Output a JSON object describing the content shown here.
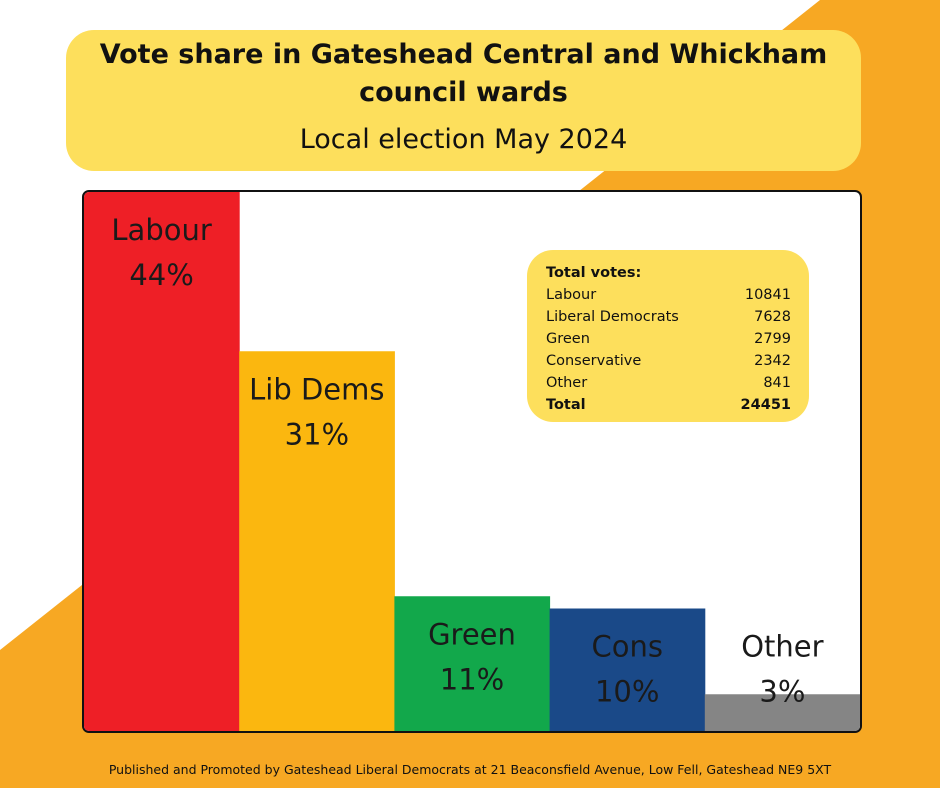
{
  "header": {
    "title": "Vote share in Gateshead Central and Whickham council wards",
    "subtitle": "Local election May 2024"
  },
  "chart_data": {
    "type": "bar",
    "categories": [
      "Labour",
      "Lib Dems",
      "Green",
      "Cons",
      "Other"
    ],
    "values": [
      44,
      31,
      11,
      10,
      3
    ],
    "value_labels": [
      "44%",
      "31%",
      "11%",
      "10%",
      "3%"
    ],
    "colors": [
      "#ee1f26",
      "#fbb70f",
      "#12a84b",
      "#1a4988",
      "#858585"
    ],
    "label_colors": [
      "#1a1a1a",
      "#1a1a1a",
      "#1a1a1a",
      "#1a1a1a",
      "#1a1a1a"
    ],
    "ylim": [
      0,
      44
    ],
    "grid": false
  },
  "totals": {
    "title": "Total votes:",
    "rows": [
      {
        "label": "Labour",
        "value": "10841"
      },
      {
        "label": "Liberal Democrats",
        "value": "7628"
      },
      {
        "label": "Green",
        "value": "2799"
      },
      {
        "label": "Conservative",
        "value": "2342"
      },
      {
        "label": "Other",
        "value": "841"
      },
      {
        "label": "Total",
        "value": "24451"
      }
    ]
  },
  "footer": {
    "text": "Published and Promoted by Gateshead Liberal Democrats at 21 Beaconsfield Avenue, Low Fell, Gateshead NE9 5XT"
  }
}
